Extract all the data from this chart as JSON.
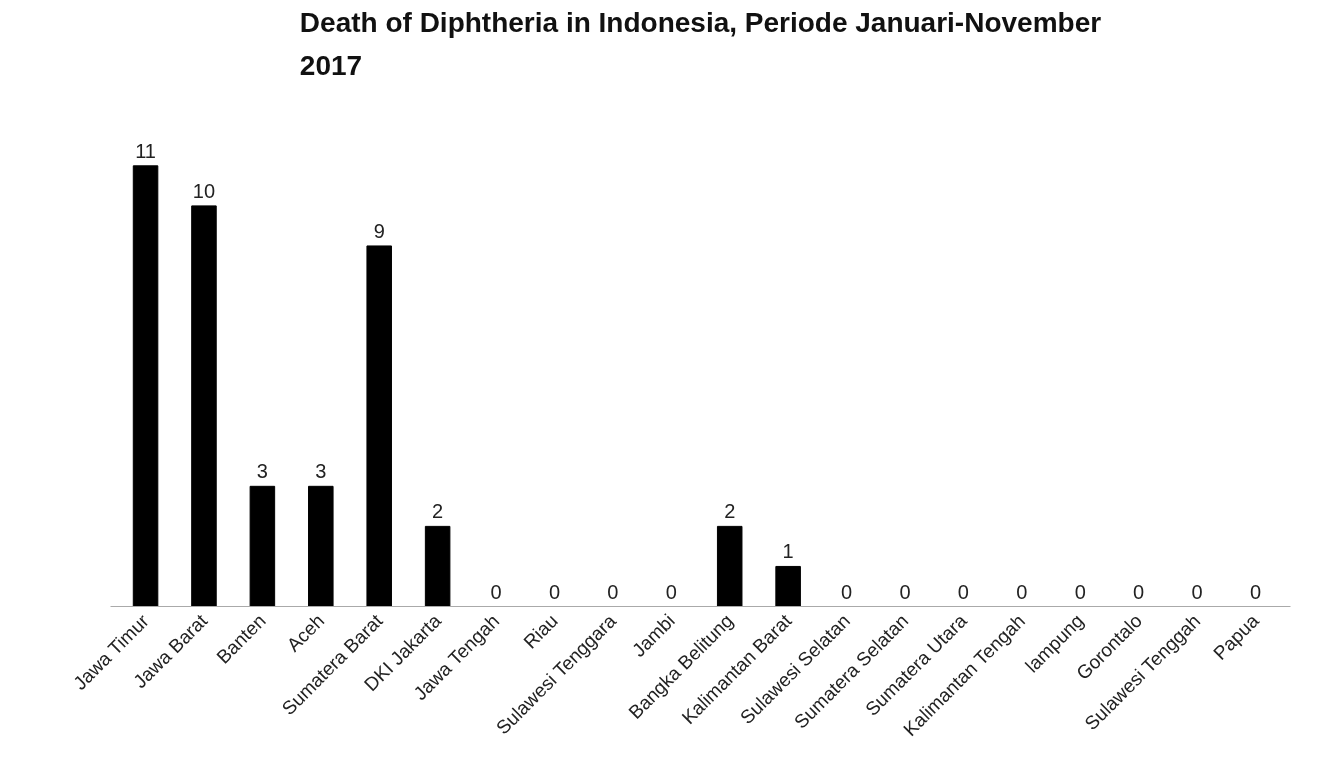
{
  "chart_data": {
    "type": "bar",
    "title": "Death of Diphtheria in Indonesia, Periode Januari-November 2017",
    "categories": [
      "Jawa Timur",
      "Jawa Barat",
      "Banten",
      "Aceh",
      "Sumatera Barat",
      "DKI Jakarta",
      "Jawa Tengah",
      "Riau",
      "Sulawesi Tenggara",
      "Jambi",
      "Bangka Belitung",
      "Kalimantan Barat",
      "Sulawesi Selatan",
      "Sumatera Selatan",
      "Sumatera Utara",
      "Kalimantan Tengah",
      "lampung",
      "Gorontalo",
      "Sulawesi Tenggah",
      "Papua"
    ],
    "values": [
      11,
      10,
      3,
      3,
      9,
      2,
      0,
      0,
      0,
      0,
      2,
      1,
      0,
      0,
      0,
      0,
      0,
      0,
      0,
      0
    ],
    "color": "#000000",
    "data_labels": true,
    "grid": false,
    "tick_labels": "x"
  }
}
